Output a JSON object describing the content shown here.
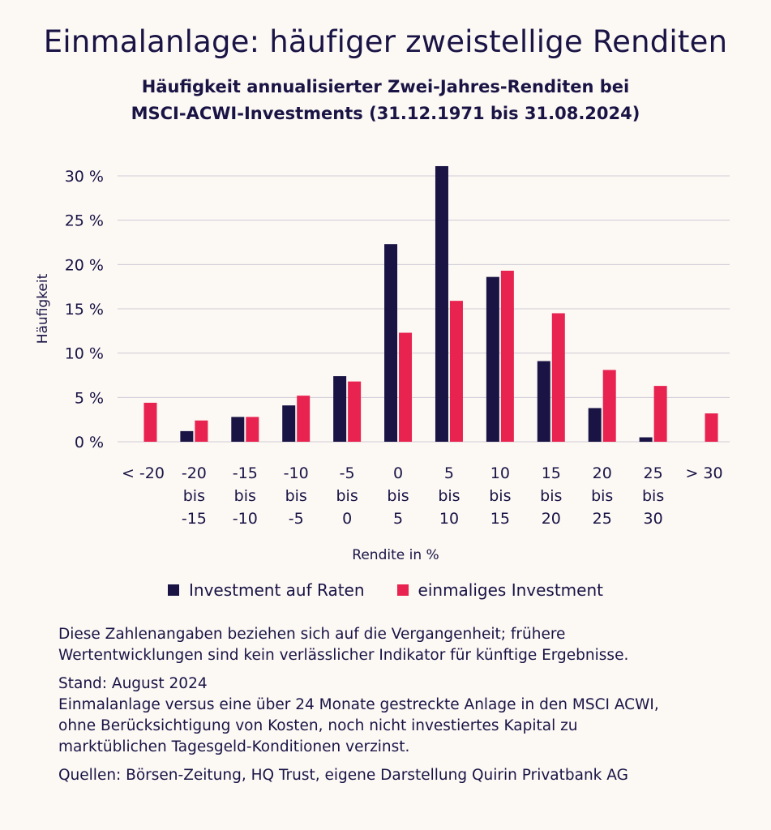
{
  "title": "Einmalanlage: häufiger zweistellige Renditen",
  "subtitle_lines": [
    "Häufigkeit annualisierter Zwei-Jahres-Renditen bei",
    "MSCI-ACWI-Investments (31.12.1971 bis 31.08.2024)"
  ],
  "colors": {
    "raten": "#1a1445",
    "einmalig": "#e8234f",
    "grid": "#cfcbd6",
    "text": "#1a1445"
  },
  "chart_data": {
    "type": "bar",
    "title": "Häufigkeit annualisierter Zwei-Jahres-Renditen bei MSCI-ACWI-Investments (31.12.1971 bis 31.08.2024)",
    "xlabel": "Rendite in %",
    "ylabel": "Häufigkeit",
    "ylim": [
      0,
      30
    ],
    "yticks": [
      0,
      5,
      10,
      15,
      20,
      25,
      30
    ],
    "ytick_labels": [
      "0 %",
      "5 %",
      "10 %",
      "15 %",
      "20 %",
      "25 %",
      "30 %"
    ],
    "grid": true,
    "legend_position": "bottom",
    "categories": [
      [
        "< -20"
      ],
      [
        "-20",
        "bis",
        "-15"
      ],
      [
        "-15",
        "bis",
        "-10"
      ],
      [
        "-10",
        "bis",
        "-5"
      ],
      [
        "-5",
        "bis",
        "0"
      ],
      [
        "0",
        "bis",
        "5"
      ],
      [
        "5",
        "bis",
        "10"
      ],
      [
        "10",
        "bis",
        "15"
      ],
      [
        "15",
        "bis",
        "20"
      ],
      [
        "20",
        "bis",
        "25"
      ],
      [
        "25",
        "bis",
        "30"
      ],
      [
        "> 30"
      ]
    ],
    "series": [
      {
        "name": "Investment auf Raten",
        "values": [
          0,
          1.2,
          2.8,
          4.1,
          7.4,
          22.3,
          31.1,
          18.6,
          9.1,
          3.8,
          0.5,
          0
        ]
      },
      {
        "name": "einmaliges Investment",
        "values": [
          4.4,
          2.4,
          2.8,
          5.2,
          6.8,
          12.3,
          15.9,
          19.3,
          14.5,
          8.1,
          6.3,
          3.2
        ]
      }
    ]
  },
  "notes": {
    "disclaimer_lines": [
      "Diese Zahlenangaben beziehen sich auf die Vergangenheit; frühere",
      "Wertentwicklungen sind kein verlässlicher Indikator für künftige Ergebnisse."
    ],
    "stand_lines": [
      "Stand: August 2024",
      "Einmalanlage versus eine über 24 Monate gestreckte Anlage in den MSCI ACWI,",
      "ohne Berücksichtigung von Kosten, noch nicht investiertes Kapital zu",
      "marktüblichen Tagesgeld-Konditionen verzinst."
    ],
    "sources": "Quellen: Börsen-Zeitung, HQ Trust, eigene Darstellung Quirin Privatbank AG"
  }
}
